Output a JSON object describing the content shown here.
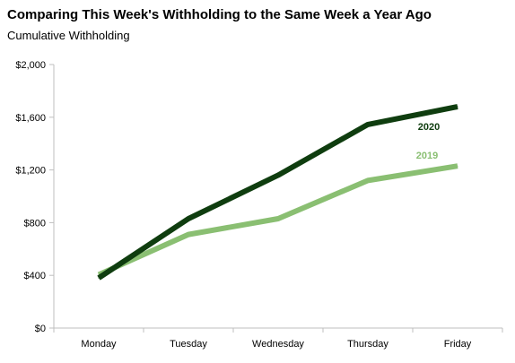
{
  "chart_data": {
    "type": "line",
    "title": "Comparing This Week's Withholding to the Same Week a Year Ago",
    "subtitle": "Cumulative Withholding",
    "xlabel": "",
    "ylabel": "",
    "categories": [
      "Monday",
      "Tuesday",
      "Wednesday",
      "Thursday",
      "Friday"
    ],
    "ylim": [
      0,
      2000
    ],
    "yticks": [
      0,
      400,
      800,
      1200,
      1600,
      2000
    ],
    "ytick_labels": [
      "$0",
      "$400",
      "$800",
      "$1,200",
      "$1,600",
      "$2,000"
    ],
    "grid": false,
    "legend": "inline labels",
    "series": [
      {
        "name": "2019",
        "values": [
          405,
          710,
          830,
          1120,
          1230
        ],
        "color": "#8abf72"
      },
      {
        "name": "2020",
        "values": [
          380,
          830,
          1160,
          1545,
          1680
        ],
        "color": "#0f3d0f"
      }
    ]
  }
}
